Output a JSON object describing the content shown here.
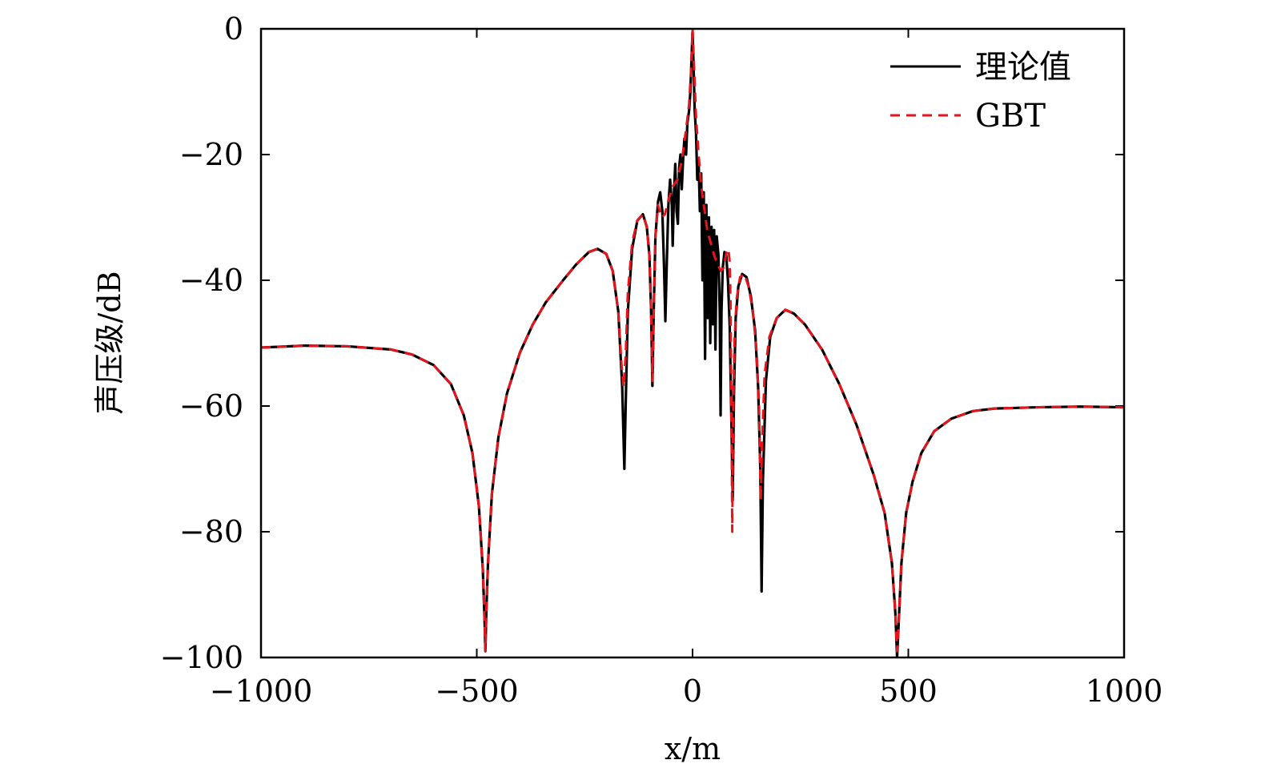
{
  "chart_data": {
    "type": "line",
    "title": "",
    "xlabel": "x/m",
    "ylabel": "声压级/dB",
    "xlim": [
      -1000,
      1000
    ],
    "ylim": [
      -100,
      0
    ],
    "xticks": [
      -1000,
      -500,
      0,
      500,
      1000
    ],
    "xtick_labels": [
      "−1000",
      "−500",
      "0",
      "500",
      "1000"
    ],
    "yticks": [
      0,
      -20,
      -40,
      -60,
      -80,
      -100
    ],
    "ytick_labels": [
      "0",
      "−20",
      "−40",
      "−60",
      "−80",
      "−100"
    ],
    "grid": false,
    "legend_position": "top-right",
    "series": [
      {
        "name": "理论值",
        "color": "#000000",
        "style": "solid",
        "points": [
          [
            -1000,
            -50.7
          ],
          [
            -900,
            -50.4
          ],
          [
            -800,
            -50.5
          ],
          [
            -700,
            -51.0
          ],
          [
            -650,
            -51.8
          ],
          [
            -600,
            -53.5
          ],
          [
            -560,
            -56.5
          ],
          [
            -530,
            -61.5
          ],
          [
            -510,
            -67.5
          ],
          [
            -495,
            -76.0
          ],
          [
            -486,
            -86.0
          ],
          [
            -482,
            -94.0
          ],
          [
            -480,
            -99.0
          ],
          [
            -478,
            -93.0
          ],
          [
            -474,
            -85.0
          ],
          [
            -465,
            -74.0
          ],
          [
            -450,
            -65.0
          ],
          [
            -430,
            -58.0
          ],
          [
            -400,
            -51.5
          ],
          [
            -370,
            -47.0
          ],
          [
            -340,
            -43.5
          ],
          [
            -300,
            -40.0
          ],
          [
            -270,
            -37.5
          ],
          [
            -240,
            -35.5
          ],
          [
            -220,
            -35.0
          ],
          [
            -200,
            -35.8
          ],
          [
            -185,
            -38.5
          ],
          [
            -172,
            -45.0
          ],
          [
            -163,
            -57.0
          ],
          [
            -158,
            -70.0
          ],
          [
            -155,
            -60.0
          ],
          [
            -150,
            -45.0
          ],
          [
            -140,
            -35.0
          ],
          [
            -128,
            -30.5
          ],
          [
            -115,
            -29.5
          ],
          [
            -106,
            -31.5
          ],
          [
            -100,
            -36.0
          ],
          [
            -96,
            -45.0
          ],
          [
            -93,
            -56.8
          ],
          [
            -90,
            -45.0
          ],
          [
            -86,
            -33.0
          ],
          [
            -80,
            -27.5
          ],
          [
            -75,
            -26.0
          ],
          [
            -70,
            -29.0
          ],
          [
            -66,
            -38.0
          ],
          [
            -63,
            -46.5
          ],
          [
            -60,
            -38.0
          ],
          [
            -56,
            -28.0
          ],
          [
            -52,
            -24.0
          ],
          [
            -48,
            -28.0
          ],
          [
            -46,
            -34.5
          ],
          [
            -43,
            -26.0
          ],
          [
            -40,
            -21.5
          ],
          [
            -37,
            -29.0
          ],
          [
            -34,
            -31.0
          ],
          [
            -31,
            -22.0
          ],
          [
            -28,
            -20.0
          ],
          [
            -25,
            -25.5
          ],
          [
            -22,
            -21.0
          ],
          [
            -19,
            -17.5
          ],
          [
            -15,
            -20.0
          ],
          [
            -12,
            -15.0
          ],
          [
            -8,
            -13.0
          ],
          [
            -5,
            -10.0
          ],
          [
            -2,
            -4.0
          ],
          [
            0,
            -0.5
          ],
          [
            2,
            -5.0
          ],
          [
            5,
            -13.0
          ],
          [
            8,
            -16.5
          ],
          [
            11,
            -24.0
          ],
          [
            14,
            -21.0
          ],
          [
            17,
            -29.0
          ],
          [
            20,
            -23.0
          ],
          [
            23,
            -40.0
          ],
          [
            26,
            -26.0
          ],
          [
            29,
            -52.5
          ],
          [
            32,
            -28.0
          ],
          [
            35,
            -46.0
          ],
          [
            38,
            -30.0
          ],
          [
            41,
            -50.0
          ],
          [
            44,
            -31.5
          ],
          [
            47,
            -47.0
          ],
          [
            50,
            -32.0
          ],
          [
            53,
            -51.0
          ],
          [
            56,
            -33.0
          ],
          [
            60,
            -36.0
          ],
          [
            63,
            -45.0
          ],
          [
            65,
            -61.5
          ],
          [
            67,
            -45.0
          ],
          [
            70,
            -38.0
          ],
          [
            74,
            -35.5
          ],
          [
            78,
            -36.0
          ],
          [
            82,
            -40.0
          ],
          [
            86,
            -47.0
          ],
          [
            90,
            -62.0
          ],
          [
            93,
            -75.0
          ],
          [
            96,
            -58.0
          ],
          [
            100,
            -46.0
          ],
          [
            106,
            -41.0
          ],
          [
            115,
            -39.0
          ],
          [
            125,
            -39.5
          ],
          [
            135,
            -42.5
          ],
          [
            145,
            -48.0
          ],
          [
            152,
            -57.0
          ],
          [
            157,
            -70.0
          ],
          [
            160,
            -89.5
          ],
          [
            163,
            -72.0
          ],
          [
            170,
            -56.0
          ],
          [
            180,
            -49.0
          ],
          [
            195,
            -46.0
          ],
          [
            215,
            -44.7
          ],
          [
            235,
            -45.3
          ],
          [
            260,
            -47.0
          ],
          [
            300,
            -51.0
          ],
          [
            340,
            -56.5
          ],
          [
            380,
            -63.0
          ],
          [
            420,
            -71.0
          ],
          [
            445,
            -77.0
          ],
          [
            462,
            -85.0
          ],
          [
            470,
            -93.0
          ],
          [
            474,
            -100.0
          ],
          [
            478,
            -94.0
          ],
          [
            484,
            -85.0
          ],
          [
            495,
            -77.0
          ],
          [
            510,
            -72.0
          ],
          [
            530,
            -67.5
          ],
          [
            560,
            -64.0
          ],
          [
            600,
            -62.0
          ],
          [
            650,
            -60.8
          ],
          [
            700,
            -60.4
          ],
          [
            800,
            -60.2
          ],
          [
            900,
            -60.1
          ],
          [
            1000,
            -60.2
          ]
        ]
      },
      {
        "name": "GBT",
        "color": "#e8141c",
        "style": "dashed",
        "points": [
          [
            -1000,
            -50.7
          ],
          [
            -900,
            -50.4
          ],
          [
            -800,
            -50.5
          ],
          [
            -700,
            -51.0
          ],
          [
            -650,
            -51.8
          ],
          [
            -600,
            -53.5
          ],
          [
            -560,
            -56.5
          ],
          [
            -530,
            -61.5
          ],
          [
            -510,
            -67.5
          ],
          [
            -495,
            -76.0
          ],
          [
            -486,
            -86.0
          ],
          [
            -482,
            -94.0
          ],
          [
            -480,
            -99.0
          ],
          [
            -478,
            -93.0
          ],
          [
            -474,
            -85.0
          ],
          [
            -465,
            -74.0
          ],
          [
            -450,
            -65.0
          ],
          [
            -430,
            -58.0
          ],
          [
            -400,
            -51.5
          ],
          [
            -370,
            -47.0
          ],
          [
            -340,
            -43.5
          ],
          [
            -300,
            -40.0
          ],
          [
            -270,
            -37.5
          ],
          [
            -240,
            -35.5
          ],
          [
            -220,
            -35.0
          ],
          [
            -200,
            -35.8
          ],
          [
            -185,
            -38.5
          ],
          [
            -172,
            -45.0
          ],
          [
            -165,
            -53.0
          ],
          [
            -160,
            -57.0
          ],
          [
            -155,
            -52.0
          ],
          [
            -150,
            -42.0
          ],
          [
            -140,
            -34.0
          ],
          [
            -128,
            -30.5
          ],
          [
            -115,
            -29.5
          ],
          [
            -106,
            -31.5
          ],
          [
            -100,
            -36.0
          ],
          [
            -96,
            -45.0
          ],
          [
            -93,
            -56.0
          ],
          [
            -90,
            -45.0
          ],
          [
            -86,
            -33.0
          ],
          [
            -80,
            -28.0
          ],
          [
            -72,
            -30.0
          ],
          [
            -64,
            -29.5
          ],
          [
            -55,
            -27.0
          ],
          [
            -45,
            -25.0
          ],
          [
            -35,
            -24.0
          ],
          [
            -25,
            -21.0
          ],
          [
            -15,
            -16.0
          ],
          [
            -8,
            -12.0
          ],
          [
            -3,
            -6.0
          ],
          [
            0,
            0.0
          ],
          [
            3,
            -5.0
          ],
          [
            8,
            -14.0
          ],
          [
            14,
            -20.0
          ],
          [
            20,
            -25.0
          ],
          [
            27,
            -28.5
          ],
          [
            34,
            -32.0
          ],
          [
            42,
            -34.0
          ],
          [
            50,
            -36.0
          ],
          [
            58,
            -37.5
          ],
          [
            66,
            -38.5
          ],
          [
            72,
            -38.0
          ],
          [
            78,
            -35.8
          ],
          [
            83,
            -35.0
          ],
          [
            86,
            -37.0
          ],
          [
            88,
            -43.0
          ],
          [
            90,
            -60.0
          ],
          [
            92,
            -80.0
          ],
          [
            94,
            -62.0
          ],
          [
            97,
            -50.0
          ],
          [
            102,
            -43.0
          ],
          [
            110,
            -39.5
          ],
          [
            120,
            -39.0
          ],
          [
            130,
            -41.0
          ],
          [
            140,
            -45.0
          ],
          [
            148,
            -51.0
          ],
          [
            154,
            -60.0
          ],
          [
            158,
            -75.0
          ],
          [
            161,
            -66.0
          ],
          [
            167,
            -55.0
          ],
          [
            178,
            -49.0
          ],
          [
            195,
            -46.0
          ],
          [
            215,
            -44.7
          ],
          [
            235,
            -45.3
          ],
          [
            260,
            -47.0
          ],
          [
            300,
            -51.0
          ],
          [
            340,
            -56.5
          ],
          [
            380,
            -63.0
          ],
          [
            420,
            -71.0
          ],
          [
            445,
            -77.0
          ],
          [
            462,
            -85.0
          ],
          [
            470,
            -93.0
          ],
          [
            474,
            -99.0
          ],
          [
            478,
            -94.0
          ],
          [
            484,
            -85.0
          ],
          [
            495,
            -77.0
          ],
          [
            510,
            -72.0
          ],
          [
            530,
            -67.5
          ],
          [
            560,
            -64.0
          ],
          [
            600,
            -62.0
          ],
          [
            650,
            -60.8
          ],
          [
            700,
            -60.4
          ],
          [
            800,
            -60.2
          ],
          [
            900,
            -60.1
          ],
          [
            1000,
            -60.2
          ]
        ]
      }
    ]
  }
}
